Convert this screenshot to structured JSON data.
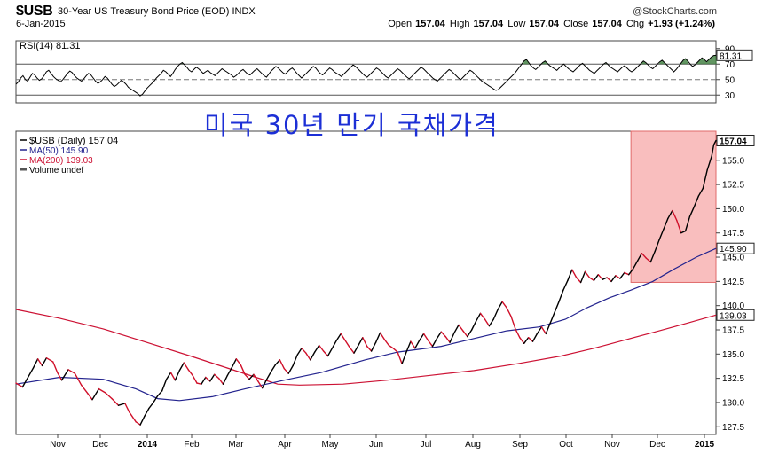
{
  "header": {
    "symbol": "$USB",
    "subtitle": "30-Year US Treasury Bond Price (EOD)  INDX",
    "date": "6-Jan-2015",
    "attribution": "@StockCharts.com",
    "ohlc": {
      "open_label": "Open",
      "open": "157.04",
      "high_label": "High",
      "high": "157.04",
      "low_label": "Low",
      "low": "157.04",
      "close_label": "Close",
      "close": "157.04",
      "chg_label": "Chg",
      "chg": "+1.93 (+1.24%)"
    }
  },
  "annotation": "미국 30년 만기 국채가격",
  "colors": {
    "price": "#000000",
    "price_down": "#d0102a",
    "ma50": "#23238e",
    "ma200": "#cc1133",
    "highlight": "#f6a3a3",
    "korean_text": "#1c2fd6",
    "rsi_fill": "#3a7a3a"
  },
  "chart_data": [
    {
      "type": "line",
      "panel": "RSI",
      "title": "RSI(14) 81.31",
      "series": [
        {
          "name": "RSI(14)",
          "last": 81.31
        }
      ],
      "ylim": [
        20,
        100
      ],
      "yticks": [
        30,
        50,
        70,
        90
      ],
      "reference_lines": [
        30,
        50,
        70
      ],
      "x_points": 300,
      "values": [
        44,
        47,
        52,
        55,
        50,
        48,
        53,
        58,
        56,
        52,
        49,
        51,
        55,
        60,
        62,
        58,
        54,
        51,
        49,
        47,
        50,
        54,
        58,
        61,
        59,
        55,
        52,
        50,
        48,
        51,
        55,
        58,
        56,
        52,
        48,
        45,
        47,
        50,
        54,
        52,
        48,
        44,
        41,
        43,
        46,
        49,
        47,
        44,
        40,
        38,
        36,
        34,
        32,
        29,
        31,
        35,
        39,
        42,
        45,
        48,
        52,
        55,
        58,
        62,
        60,
        57,
        54,
        58,
        63,
        67,
        70,
        72,
        69,
        66,
        62,
        60,
        63,
        66,
        64,
        61,
        58,
        60,
        62,
        59,
        57,
        55,
        58,
        61,
        64,
        62,
        60,
        58,
        56,
        53,
        55,
        58,
        61,
        63,
        60,
        57,
        56,
        59,
        62,
        64,
        61,
        58,
        55,
        53,
        57,
        61,
        64,
        67,
        65,
        62,
        59,
        57,
        60,
        63,
        65,
        62,
        58,
        55,
        52,
        55,
        58,
        61,
        64,
        67,
        65,
        61,
        58,
        56,
        59,
        62,
        65,
        63,
        60,
        58,
        56,
        54,
        57,
        60,
        63,
        66,
        69,
        67,
        64,
        61,
        58,
        55,
        53,
        56,
        59,
        62,
        65,
        63,
        60,
        57,
        54,
        52,
        55,
        58,
        61,
        64,
        62,
        59,
        56,
        53,
        51,
        54,
        57,
        60,
        63,
        66,
        64,
        61,
        58,
        55,
        52,
        50,
        48,
        51,
        54,
        57,
        60,
        63,
        61,
        58,
        55,
        52,
        50,
        53,
        56,
        59,
        62,
        60,
        57,
        54,
        51,
        48,
        46,
        44,
        42,
        40,
        38,
        36,
        37,
        40,
        43,
        46,
        49,
        52,
        55,
        58,
        62,
        66,
        70,
        74,
        76,
        72,
        68,
        65,
        63,
        66,
        69,
        72,
        74,
        71,
        68,
        66,
        64,
        62,
        65,
        68,
        70,
        67,
        64,
        62,
        60,
        63,
        66,
        69,
        71,
        68,
        65,
        62,
        60,
        58,
        61,
        64,
        67,
        70,
        72,
        69,
        66,
        64,
        62,
        60,
        63,
        66,
        68,
        65,
        62,
        60,
        62,
        65,
        68,
        71,
        74,
        72,
        69,
        66,
        64,
        67,
        70,
        73,
        75,
        72,
        69,
        66,
        63,
        60,
        63,
        67,
        71,
        75,
        77,
        74,
        70,
        67,
        69,
        72,
        75,
        78,
        76,
        73,
        76,
        79,
        81,
        81.31
      ]
    },
    {
      "type": "line",
      "panel": "price",
      "title": "$USB (Daily) 157.04",
      "ylim": [
        126.7,
        158.0
      ],
      "yticks": [
        127.5,
        130.0,
        132.5,
        135.0,
        137.5,
        140.0,
        142.5,
        145.0,
        147.5,
        150.0,
        152.5,
        155.0
      ],
      "x_labels": [
        "Nov",
        "Dec",
        "2014",
        "Feb",
        "Mar",
        "Apr",
        "May",
        "Jun",
        "Jul",
        "Aug",
        "Sep",
        "Oct",
        "Nov",
        "Dec",
        "2015"
      ],
      "bold_x_labels": [
        "2014",
        "2015"
      ],
      "value_tags": [
        157.04,
        145.9,
        139.03
      ],
      "legend": [
        {
          "label": "$USB (Daily) 157.04",
          "color": "#000000"
        },
        {
          "label": "MA(50) 145.90",
          "color": "#23238e"
        },
        {
          "label": "MA(200) 139.03",
          "color": "#cc1133"
        },
        {
          "label": "Volume undef",
          "color": "#555555"
        }
      ],
      "series": [
        {
          "name": "$USB (Daily)",
          "last": 157.04,
          "points": [
            [
              0,
              132.0
            ],
            [
              3,
              131.6
            ],
            [
              5,
              132.4
            ],
            [
              8,
              133.6
            ],
            [
              10,
              134.5
            ],
            [
              12,
              133.8
            ],
            [
              14,
              134.6
            ],
            [
              17,
              134.2
            ],
            [
              19,
              133.1
            ],
            [
              21,
              132.3
            ],
            [
              24,
              133.4
            ],
            [
              27,
              133.0
            ],
            [
              30,
              131.8
            ],
            [
              33,
              130.9
            ],
            [
              35,
              130.3
            ],
            [
              38,
              131.4
            ],
            [
              41,
              131.0
            ],
            [
              44,
              130.4
            ],
            [
              47,
              129.7
            ],
            [
              50,
              129.9
            ],
            [
              52,
              129.0
            ],
            [
              55,
              128.0
            ],
            [
              57,
              127.7
            ],
            [
              59,
              128.6
            ],
            [
              61,
              129.4
            ],
            [
              63,
              130.0
            ],
            [
              65,
              130.7
            ],
            [
              67,
              131.2
            ],
            [
              69,
              132.4
            ],
            [
              71,
              133.1
            ],
            [
              73,
              132.3
            ],
            [
              75,
              133.3
            ],
            [
              77,
              134.1
            ],
            [
              79,
              133.4
            ],
            [
              81,
              132.8
            ],
            [
              83,
              132.0
            ],
            [
              85,
              131.9
            ],
            [
              87,
              132.6
            ],
            [
              89,
              132.2
            ],
            [
              91,
              132.9
            ],
            [
              93,
              132.5
            ],
            [
              95,
              131.9
            ],
            [
              97,
              132.8
            ],
            [
              99,
              133.6
            ],
            [
              101,
              134.5
            ],
            [
              103,
              133.9
            ],
            [
              105,
              132.9
            ],
            [
              107,
              132.4
            ],
            [
              109,
              132.9
            ],
            [
              111,
              132.2
            ],
            [
              113,
              131.5
            ],
            [
              115,
              132.4
            ],
            [
              117,
              133.2
            ],
            [
              119,
              133.9
            ],
            [
              121,
              134.4
            ],
            [
              123,
              133.5
            ],
            [
              125,
              133.0
            ],
            [
              127,
              133.8
            ],
            [
              129,
              134.9
            ],
            [
              131,
              135.6
            ],
            [
              133,
              135.1
            ],
            [
              135,
              134.4
            ],
            [
              137,
              135.2
            ],
            [
              139,
              135.9
            ],
            [
              141,
              135.3
            ],
            [
              143,
              134.8
            ],
            [
              145,
              135.6
            ],
            [
              147,
              136.4
            ],
            [
              149,
              137.1
            ],
            [
              151,
              136.4
            ],
            [
              153,
              135.7
            ],
            [
              155,
              135.1
            ],
            [
              157,
              135.9
            ],
            [
              159,
              136.7
            ],
            [
              161,
              135.8
            ],
            [
              163,
              135.3
            ],
            [
              165,
              136.2
            ],
            [
              167,
              137.2
            ],
            [
              169,
              136.5
            ],
            [
              171,
              135.9
            ],
            [
              173,
              135.6
            ],
            [
              175,
              135.2
            ],
            [
              177,
              134.0
            ],
            [
              179,
              135.2
            ],
            [
              181,
              136.3
            ],
            [
              183,
              135.6
            ],
            [
              185,
              136.4
            ],
            [
              187,
              137.1
            ],
            [
              189,
              136.4
            ],
            [
              191,
              135.8
            ],
            [
              193,
              136.6
            ],
            [
              195,
              137.3
            ],
            [
              197,
              136.8
            ],
            [
              199,
              136.2
            ],
            [
              201,
              137.2
            ],
            [
              203,
              138.0
            ],
            [
              205,
              137.4
            ],
            [
              207,
              136.8
            ],
            [
              209,
              137.5
            ],
            [
              211,
              138.4
            ],
            [
              213,
              139.2
            ],
            [
              215,
              138.6
            ],
            [
              217,
              137.9
            ],
            [
              219,
              138.6
            ],
            [
              221,
              139.6
            ],
            [
              223,
              140.4
            ],
            [
              225,
              139.8
            ],
            [
              227,
              138.9
            ],
            [
              229,
              137.6
            ],
            [
              231,
              136.7
            ],
            [
              233,
              136.1
            ],
            [
              235,
              136.7
            ],
            [
              237,
              136.3
            ],
            [
              239,
              137.1
            ],
            [
              241,
              137.8
            ],
            [
              243,
              137.1
            ],
            [
              245,
              138.2
            ],
            [
              247,
              139.3
            ],
            [
              249,
              140.4
            ],
            [
              251,
              141.6
            ],
            [
              253,
              142.6
            ],
            [
              255,
              143.7
            ],
            [
              257,
              142.9
            ],
            [
              259,
              142.4
            ],
            [
              261,
              143.5
            ],
            [
              263,
              142.9
            ],
            [
              265,
              142.6
            ],
            [
              267,
              143.2
            ],
            [
              269,
              142.7
            ],
            [
              271,
              142.9
            ],
            [
              273,
              142.5
            ],
            [
              275,
              143.1
            ],
            [
              277,
              142.8
            ],
            [
              279,
              143.4
            ],
            [
              281,
              143.2
            ],
            [
              283,
              143.8
            ],
            [
              285,
              144.6
            ],
            [
              287,
              145.4
            ],
            [
              289,
              144.9
            ],
            [
              291,
              144.5
            ],
            [
              293,
              145.6
            ],
            [
              295,
              146.8
            ],
            [
              297,
              147.9
            ],
            [
              299,
              149.0
            ],
            [
              301,
              149.8
            ],
            [
              303,
              148.8
            ],
            [
              305,
              147.5
            ],
            [
              307,
              147.7
            ],
            [
              309,
              149.2
            ],
            [
              311,
              150.2
            ],
            [
              313,
              151.3
            ],
            [
              315,
              152.1
            ],
            [
              317,
              154.0
            ],
            [
              319,
              155.4
            ],
            [
              320,
              156.6
            ],
            [
              321,
              157.04
            ]
          ]
        },
        {
          "name": "MA(50)",
          "last": 145.9,
          "points": [
            [
              0,
              131.9
            ],
            [
              20,
              132.6
            ],
            [
              40,
              132.4
            ],
            [
              55,
              131.4
            ],
            [
              65,
              130.4
            ],
            [
              75,
              130.2
            ],
            [
              90,
              130.6
            ],
            [
              105,
              131.4
            ],
            [
              125,
              132.4
            ],
            [
              140,
              133.1
            ],
            [
              160,
              134.4
            ],
            [
              175,
              135.2
            ],
            [
              195,
              135.8
            ],
            [
              210,
              136.6
            ],
            [
              225,
              137.4
            ],
            [
              240,
              137.8
            ],
            [
              252,
              138.6
            ],
            [
              262,
              139.8
            ],
            [
              272,
              140.8
            ],
            [
              282,
              141.6
            ],
            [
              292,
              142.5
            ],
            [
              302,
              143.8
            ],
            [
              312,
              145.0
            ],
            [
              321,
              145.9
            ]
          ]
        },
        {
          "name": "MA(200)",
          "last": 139.03,
          "points": [
            [
              0,
              139.6
            ],
            [
              20,
              138.7
            ],
            [
              40,
              137.6
            ],
            [
              60,
              136.2
            ],
            [
              80,
              134.8
            ],
            [
              95,
              133.7
            ],
            [
              110,
              132.6
            ],
            [
              120,
              131.9
            ],
            [
              130,
              131.8
            ],
            [
              150,
              131.9
            ],
            [
              170,
              132.3
            ],
            [
              190,
              132.8
            ],
            [
              210,
              133.3
            ],
            [
              230,
              134.0
            ],
            [
              250,
              134.8
            ],
            [
              265,
              135.6
            ],
            [
              280,
              136.5
            ],
            [
              295,
              137.4
            ],
            [
              308,
              138.2
            ],
            [
              321,
              139.03
            ]
          ]
        }
      ],
      "highlight_region": {
        "x": [
          282,
          321
        ],
        "y": [
          142.4,
          158.0
        ]
      }
    }
  ]
}
